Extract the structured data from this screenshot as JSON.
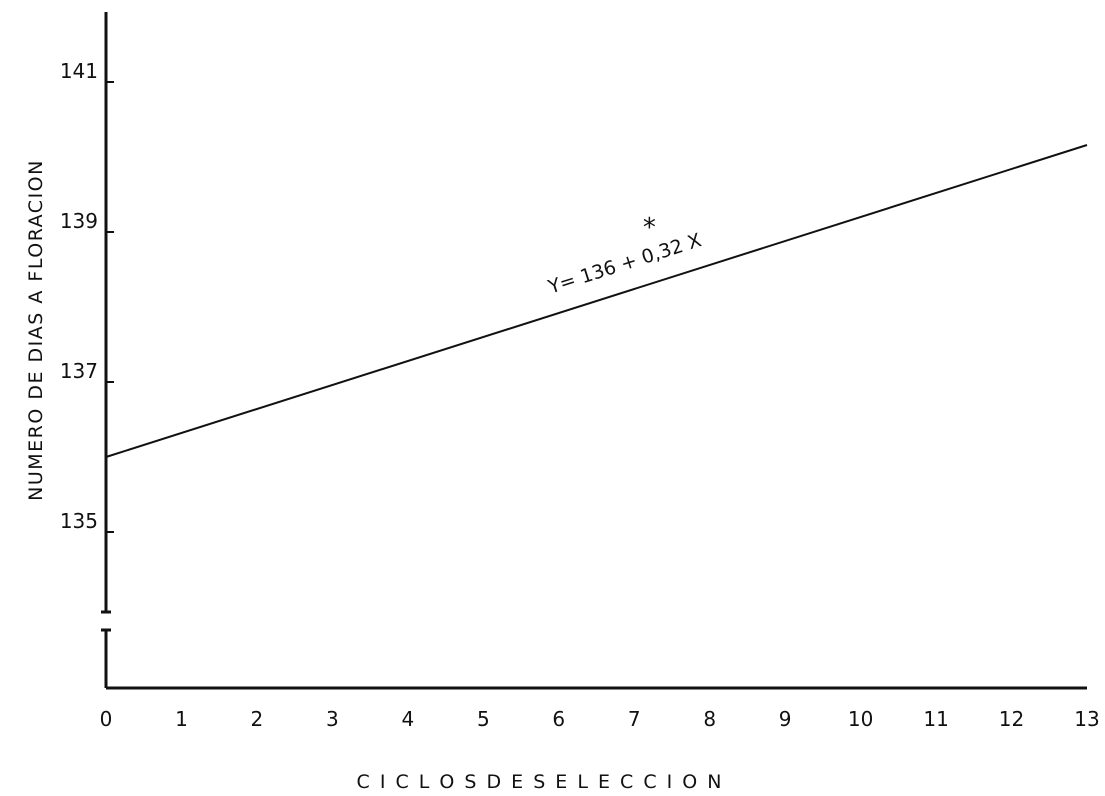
{
  "chart_data": {
    "type": "line",
    "title": "",
    "xlabel": "C I C L O S   D E   S E L E C C I O N",
    "ylabel": "NUMERO  DE  DIAS  A  FLORACION",
    "x_ticks": [
      "0",
      "1",
      "2",
      "3",
      "4",
      "5",
      "6",
      "7",
      "8",
      "9",
      "10",
      "11",
      "12",
      "13"
    ],
    "y_ticks": [
      "135",
      "137",
      "139",
      "141"
    ],
    "xlim": [
      0,
      13
    ],
    "ylim": [
      135,
      141
    ],
    "axis_break": true,
    "grid": false,
    "series": [
      {
        "x": [
          0,
          13
        ],
        "y": [
          136.0,
          140.16
        ]
      }
    ],
    "annotations": [
      {
        "text": "Y= 136 + 0,32 X",
        "x": 6.9,
        "y": 138.5
      },
      {
        "text": "*",
        "x": 7.2,
        "y": 138.95
      }
    ],
    "colors": {
      "line": "#111111",
      "axis": "#111111"
    }
  }
}
